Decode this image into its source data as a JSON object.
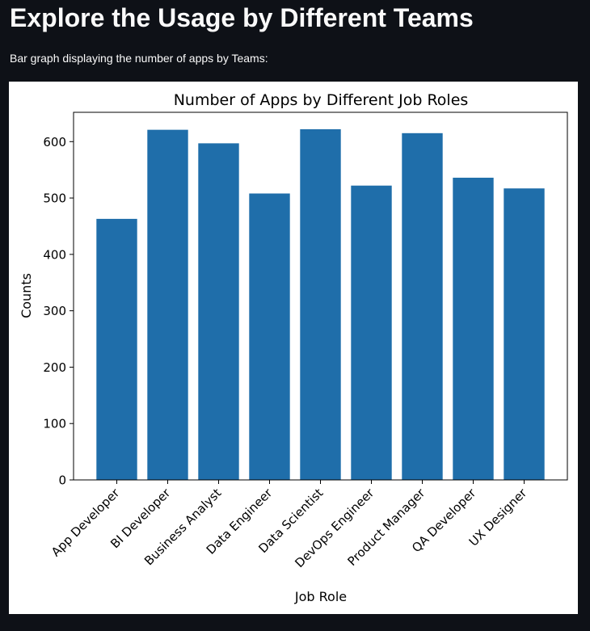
{
  "page": {
    "title": "Explore the Usage by Different Teams",
    "subtitle": "Bar graph displaying the number of apps by Teams:"
  },
  "chart_data": {
    "type": "bar",
    "title": "Number of Apps by Different Job Roles",
    "xlabel": "Job Role",
    "ylabel": "Counts",
    "categories": [
      "App Developer",
      "BI Developer",
      "Business Analyst",
      "Data Engineer",
      "Data Scientist",
      "DevOps Engineer",
      "Product Manager",
      "QA Developer",
      "UX Designer"
    ],
    "values": [
      463,
      621,
      597,
      508,
      622,
      522,
      615,
      536,
      517
    ],
    "yticks": [
      0,
      100,
      200,
      300,
      400,
      500,
      600
    ],
    "ylim": [
      0,
      652
    ],
    "bar_color": "#1f6eaa",
    "grid": false,
    "legend": false
  }
}
